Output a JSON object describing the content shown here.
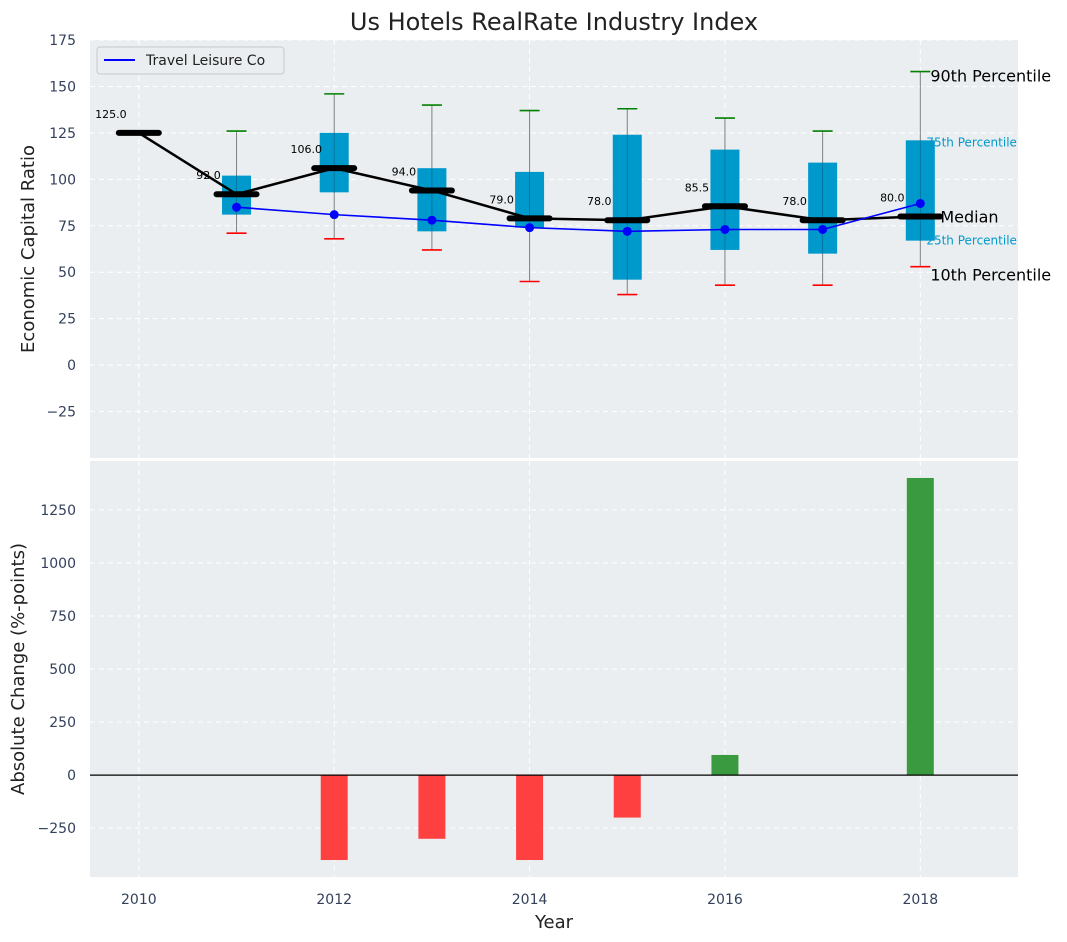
{
  "chart_data": [
    {
      "type": "box",
      "title": "Us Hotels RealRate Industry Index",
      "ylabel": "Economic Capital Ratio",
      "xlabel": "",
      "ylim": [
        -50,
        175
      ],
      "xlim": [
        2009.5,
        2019
      ],
      "yticks": [
        175,
        150,
        125,
        100,
        75,
        50,
        25,
        0,
        -25
      ],
      "ytick_labels": [
        "175",
        "150",
        "125",
        "100",
        "75",
        "50",
        "25",
        "0",
        "−25"
      ],
      "grid": true,
      "legend_position": "top-left",
      "years": [
        2010,
        2011,
        2012,
        2013,
        2014,
        2015,
        2016,
        2017,
        2018
      ],
      "p90": [
        null,
        126,
        146,
        140,
        137,
        138,
        133,
        126,
        158
      ],
      "p75": [
        null,
        102,
        125,
        106,
        104,
        124,
        116,
        109,
        121
      ],
      "median": [
        125,
        92,
        106,
        94,
        79,
        78,
        85.5,
        78,
        80
      ],
      "p25": [
        null,
        81,
        93,
        72,
        74,
        46,
        62,
        60,
        67
      ],
      "p10": [
        null,
        71,
        68,
        62,
        45,
        38,
        43,
        43,
        53
      ],
      "median_labels": [
        "125.0",
        "92.0",
        "106.0",
        "94.0",
        "79.0",
        "78.0",
        "85.5",
        "78.0",
        "80.0"
      ],
      "series": [
        {
          "name": "Travel Leisure Co",
          "x": [
            2011,
            2012,
            2013,
            2014,
            2015,
            2016,
            2017,
            2018
          ],
          "values": [
            85,
            81,
            78,
            74,
            72,
            73,
            73,
            87
          ]
        }
      ],
      "annotations": {
        "p90": "90th Percentile",
        "p75": "75th Percentile",
        "median": "Median",
        "p25": "25th Percentile",
        "p10": "10th Percentile"
      },
      "colors": {
        "box": "#0099cc",
        "median_line": "#000000",
        "company_line": "#0000ff",
        "p90_cap": "#008000",
        "p10_cap": "#ff0000",
        "whisker": "#808080"
      }
    },
    {
      "type": "bar",
      "ylabel": "Absolute Change (%-points)",
      "xlabel": "Year",
      "ylim": [
        -480,
        1480
      ],
      "xlim": [
        2009.5,
        2019
      ],
      "yticks": [
        1250,
        1000,
        750,
        500,
        250,
        0,
        -250
      ],
      "ytick_labels": [
        "1250",
        "1000",
        "750",
        "500",
        "250",
        "0",
        "−250"
      ],
      "xticks": [
        2010,
        2012,
        2014,
        2016,
        2018
      ],
      "xtick_labels": [
        "2010",
        "2012",
        "2014",
        "2016",
        "2018"
      ],
      "grid": true,
      "x": [
        2012,
        2013,
        2014,
        2015,
        2016,
        2018
      ],
      "values": [
        -400,
        -300,
        -400,
        -200,
        95,
        1400
      ],
      "colors": {
        "positive": "#3a9a3f",
        "negative": "#ff4040",
        "zero_line": "#000000"
      }
    }
  ]
}
